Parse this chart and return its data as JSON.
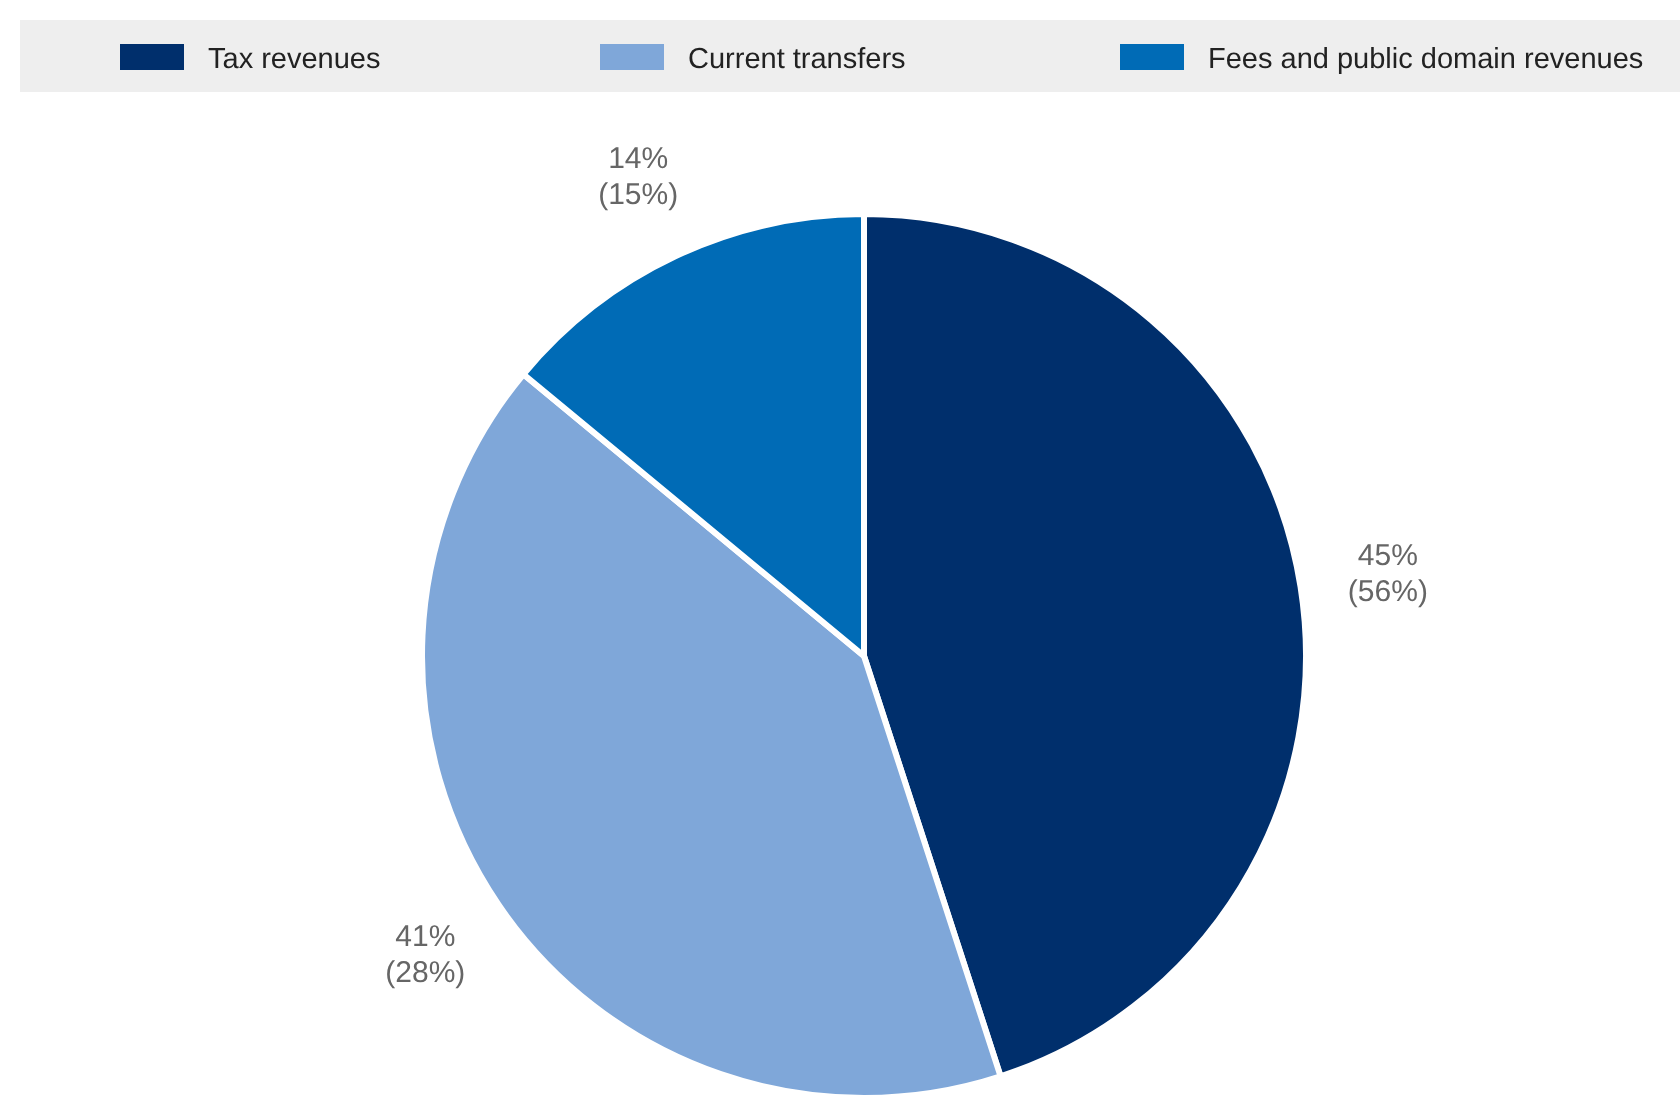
{
  "chart_data": {
    "type": "pie",
    "categories": [
      "Tax revenues",
      "Current transfers",
      "Fees and public domain revenues"
    ],
    "values": [
      45,
      41,
      14
    ],
    "colors": [
      "#002f6c",
      "#7fa7d9",
      "#006bb6"
    ],
    "value_labels": [
      "45%\n(56%)",
      "41%\n(28%)",
      "14%\n(15%)"
    ],
    "legend": "top"
  }
}
